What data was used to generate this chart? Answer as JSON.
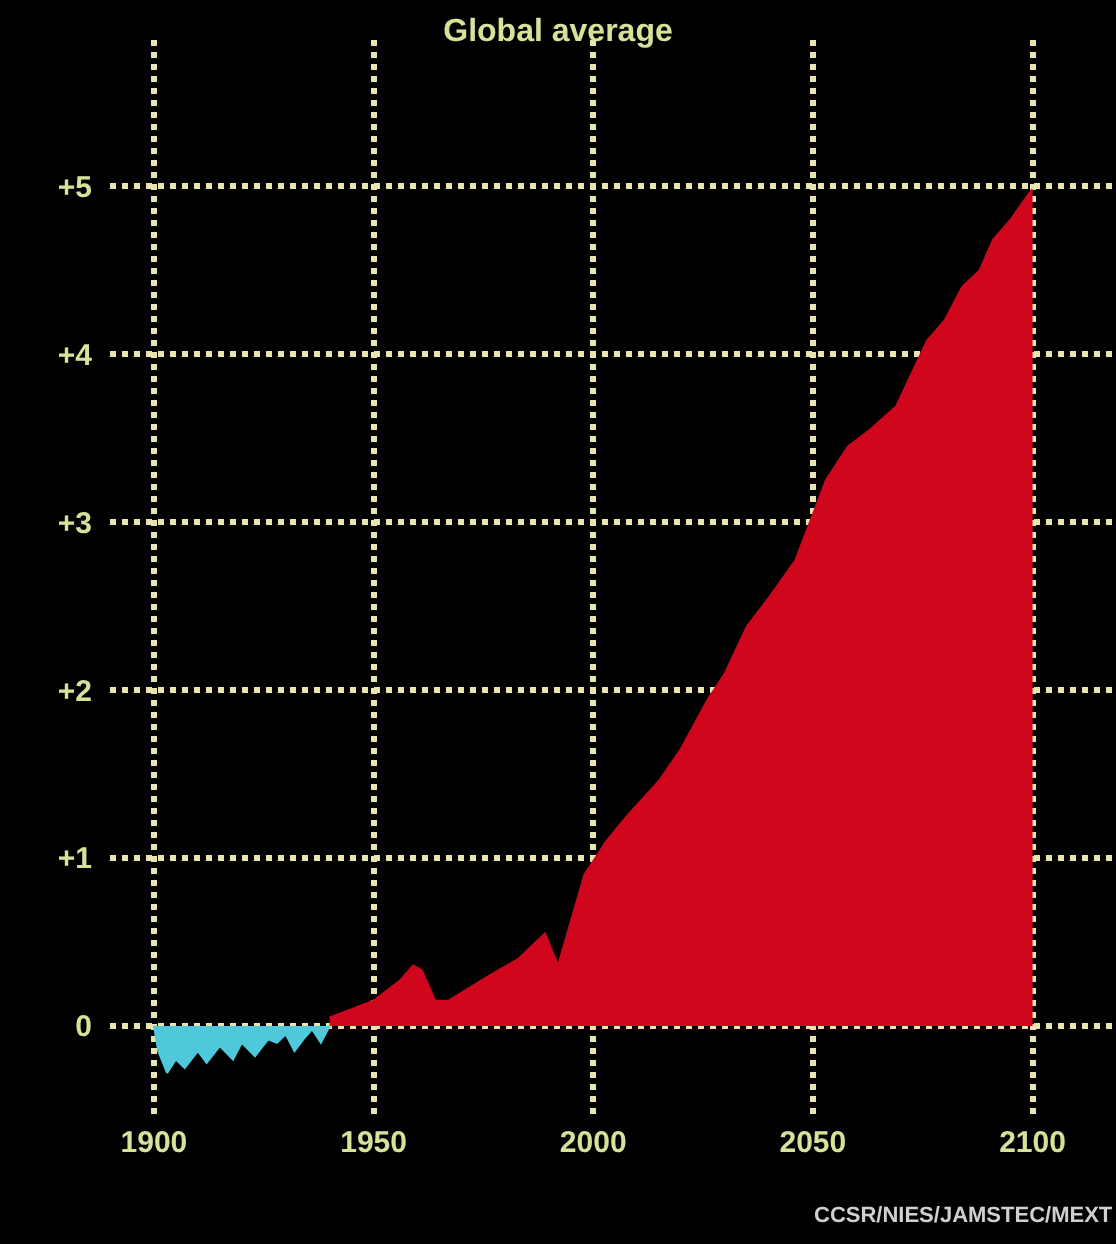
{
  "chart_data": {
    "type": "area",
    "title": "Global average",
    "series": [
      {
        "color": "#4fc8dc",
        "x": [
          1900,
          1901,
          1903,
          1905,
          1907,
          1910,
          1912,
          1915,
          1918,
          1920,
          1923,
          1926,
          1928,
          1930,
          1932,
          1934,
          1936,
          1938,
          1940
        ],
        "values": [
          0,
          -0.15,
          -0.28,
          -0.2,
          -0.25,
          -0.15,
          -0.22,
          -0.12,
          -0.2,
          -0.1,
          -0.18,
          -0.08,
          -0.1,
          -0.05,
          -0.15,
          -0.08,
          -0.02,
          -0.1,
          0
        ]
      },
      {
        "color": "#d0061c",
        "x": [
          1940,
          1945,
          1947,
          1950,
          1956,
          1959,
          1961,
          1964,
          1967,
          1977,
          1983,
          1989,
          1992,
          1998,
          2003,
          2008,
          2015,
          2020,
          2026,
          2030,
          2035,
          2040,
          2046,
          2053,
          2058,
          2063,
          2069,
          2076,
          2080,
          2084,
          2088,
          2091,
          2095,
          2099,
          2100
        ],
        "values": [
          0.05,
          0.1,
          0.12,
          0.15,
          0.27,
          0.36,
          0.33,
          0.15,
          0.15,
          0.31,
          0.4,
          0.55,
          0.36,
          0.9,
          1.1,
          1.26,
          1.46,
          1.65,
          1.94,
          2.1,
          2.38,
          2.55,
          2.77,
          3.25,
          3.45,
          3.55,
          3.69,
          4.08,
          4.2,
          4.4,
          4.5,
          4.68,
          4.8,
          4.95,
          4.98
        ]
      }
    ],
    "xlim": [
      1890,
      2119
    ],
    "xticks": [
      1900,
      1950,
      2000,
      2050,
      2100
    ],
    "ylim": [
      -0.56,
      5.87
    ],
    "yticks": [
      0,
      {
        "value": 1,
        "label": "+1"
      },
      {
        "value": 2,
        "label": "+2"
      },
      {
        "value": 3,
        "label": "+3"
      },
      {
        "value": 4,
        "label": "+4"
      },
      {
        "value": 5,
        "label": "+5"
      }
    ],
    "grid": true,
    "annotations": [
      "CCSR/NIES/JAMSTEC/MEXT"
    ]
  }
}
